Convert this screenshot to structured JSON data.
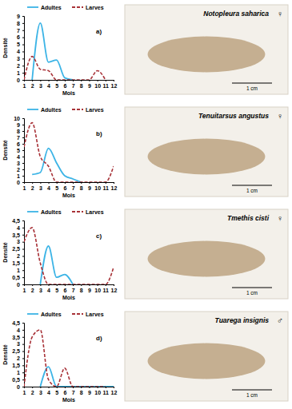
{
  "chart_data": [
    {
      "type": "line",
      "title": "a)",
      "x_label": "Mois",
      "y_label": "Densité",
      "x": [
        1,
        2,
        3,
        4,
        5,
        6,
        7,
        8,
        9,
        10,
        11,
        12
      ],
      "xlim": [
        1,
        12
      ],
      "xticks": [
        1,
        2,
        3,
        4,
        5,
        6,
        7,
        8,
        9,
        10,
        11,
        12
      ],
      "ylim": [
        0,
        9
      ],
      "yticks": [
        0,
        1,
        2,
        3,
        4,
        5,
        6,
        7,
        8,
        9
      ],
      "legend": "top",
      "series": [
        {
          "name": "Adultes",
          "color": "#3cb4e6",
          "line_style": "solid",
          "values": [
            null,
            0,
            8,
            2.5,
            2.8,
            0.3,
            0,
            null,
            null,
            null,
            null,
            null
          ]
        },
        {
          "name": "Larves",
          "color": "#a83238",
          "line_style": "dashed",
          "values": [
            0,
            3.3,
            1.5,
            1.3,
            0,
            0,
            0,
            0,
            0,
            1.3,
            0,
            null
          ]
        }
      ]
    },
    {
      "type": "line",
      "title": "b)",
      "x_label": "Mois",
      "y_label": "Densité",
      "x": [
        1,
        2,
        3,
        4,
        5,
        6,
        7,
        8,
        9,
        10,
        11,
        12
      ],
      "xlim": [
        1,
        12
      ],
      "xticks": [
        1,
        2,
        3,
        4,
        5,
        6,
        7,
        8,
        9,
        10,
        11,
        12
      ],
      "ylim": [
        0,
        10
      ],
      "yticks": [
        0,
        1,
        2,
        3,
        4,
        5,
        6,
        7,
        8,
        9,
        10
      ],
      "legend": "top",
      "series": [
        {
          "name": "Adultes",
          "color": "#3cb4e6",
          "line_style": "solid",
          "values": [
            null,
            1.2,
            1.5,
            5.3,
            3,
            1,
            0.5,
            0,
            null,
            null,
            null,
            null
          ]
        },
        {
          "name": "Larves",
          "color": "#a83238",
          "line_style": "dashed",
          "values": [
            5.5,
            9.3,
            4,
            2.5,
            0,
            0,
            0,
            0,
            0,
            0,
            0,
            2.5
          ]
        }
      ]
    },
    {
      "type": "line",
      "title": "c)",
      "x_label": "Mois",
      "y_label": "Densité",
      "x": [
        1,
        2,
        3,
        4,
        5,
        6,
        7,
        8,
        9,
        10,
        11,
        12
      ],
      "xlim": [
        1,
        12
      ],
      "xticks": [
        1,
        2,
        3,
        4,
        5,
        6,
        7,
        8,
        9,
        10,
        11,
        12
      ],
      "ylim": [
        0,
        4.5
      ],
      "yticks": [
        0,
        {
          "value": 0.5,
          "label": "0,5"
        },
        1,
        {
          "value": 1.5,
          "label": "1,5"
        },
        2,
        {
          "value": 2.5,
          "label": "2,5"
        },
        3,
        {
          "value": 3.5,
          "label": "3,5"
        },
        4,
        {
          "value": 4.5,
          "label": "4,5"
        }
      ],
      "legend": "top",
      "series": [
        {
          "name": "Adultes",
          "color": "#3cb4e6",
          "line_style": "solid",
          "values": [
            null,
            null,
            0,
            2.7,
            0.5,
            0.7,
            0,
            null,
            null,
            null,
            null,
            null
          ]
        },
        {
          "name": "Larves",
          "color": "#a83238",
          "line_style": "dashed",
          "values": [
            3,
            4,
            1.5,
            0,
            0,
            0,
            0,
            0,
            0,
            0,
            0,
            1.2
          ]
        }
      ]
    },
    {
      "type": "line",
      "title": "d)",
      "x_label": "Mois",
      "y_label": "Densité",
      "x": [
        1,
        2,
        3,
        4,
        5,
        6,
        7,
        8,
        9,
        10,
        11,
        12
      ],
      "xlim": [
        1,
        12
      ],
      "xticks": [
        1,
        2,
        3,
        4,
        5,
        6,
        7,
        8,
        9,
        10,
        11,
        12
      ],
      "ylim": [
        0,
        4.5
      ],
      "yticks": [
        0,
        {
          "value": 0.5,
          "label": "0,5"
        },
        1,
        {
          "value": 1.5,
          "label": "1,5"
        },
        2,
        {
          "value": 2.5,
          "label": "2,5"
        },
        3,
        {
          "value": 3.5,
          "label": "3,5"
        },
        4,
        {
          "value": 4.5,
          "label": "4,5"
        }
      ],
      "legend": "top",
      "series": [
        {
          "name": "Adultes",
          "color": "#3cb4e6",
          "line_style": "solid",
          "values": [
            null,
            null,
            0,
            1.4,
            0,
            0,
            0,
            0,
            0,
            0,
            0,
            0
          ]
        },
        {
          "name": "Larves",
          "color": "#a83238",
          "line_style": "dashed",
          "values": [
            0,
            3.5,
            4,
            0.5,
            0,
            1.3,
            0,
            0,
            0,
            0,
            0,
            null
          ]
        }
      ]
    }
  ],
  "photos": [
    {
      "species": "Notopleura saharica",
      "sex": "♀",
      "scale_label": "1 cm"
    },
    {
      "species": "Tenuitarsus angustus",
      "sex": "♀",
      "scale_label": "1 cm"
    },
    {
      "species": "Tmethis cisti",
      "sex": "♀",
      "scale_label": "1 cm"
    },
    {
      "species": "Tuarega insignis",
      "sex": "♂",
      "scale_label": "1 cm"
    }
  ]
}
